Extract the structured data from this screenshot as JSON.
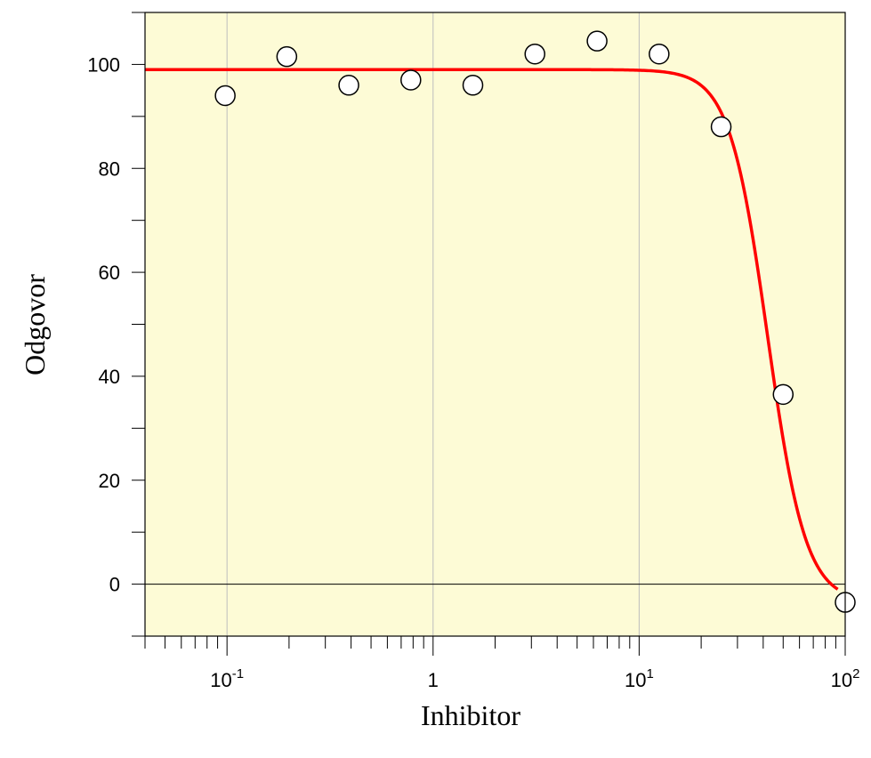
{
  "chart_data": {
    "type": "scatter",
    "xlabel": "Inhibitor",
    "ylabel": "Odgovor",
    "x_scale": "log",
    "xlim": [
      0.04,
      100
    ],
    "ylim": [
      -10,
      110
    ],
    "grid": "vertical at decades",
    "background_color": "#fdfbd6",
    "curve_color": "#ff0000",
    "marker_fill": "#ffffff",
    "y_ticks": [
      {
        "value": 0,
        "label": "0"
      },
      {
        "value": 20,
        "label": "20"
      },
      {
        "value": 40,
        "label": "40"
      },
      {
        "value": 60,
        "label": "60"
      },
      {
        "value": 80,
        "label": "80"
      },
      {
        "value": 100,
        "label": "100"
      }
    ],
    "x_ticks": [
      {
        "value": 0.1,
        "base": "10",
        "exp": "-1"
      },
      {
        "value": 1,
        "base": "1",
        "exp": ""
      },
      {
        "value": 10,
        "base": "10",
        "exp": "1"
      },
      {
        "value": 100,
        "base": "10",
        "exp": "2"
      }
    ],
    "points": [
      {
        "x": 0.098,
        "y": 94
      },
      {
        "x": 0.195,
        "y": 101.5
      },
      {
        "x": 0.39,
        "y": 96
      },
      {
        "x": 0.78,
        "y": 97
      },
      {
        "x": 1.56,
        "y": 96
      },
      {
        "x": 3.12,
        "y": 102
      },
      {
        "x": 6.25,
        "y": 104.5
      },
      {
        "x": 12.5,
        "y": 102
      },
      {
        "x": 25,
        "y": 88
      },
      {
        "x": 50,
        "y": 36.5
      },
      {
        "x": 100,
        "y": -3.5
      }
    ],
    "fit_curve": {
      "model": "four-parameter logistic",
      "top": 99,
      "bottom": -3.5,
      "ic50": 42,
      "hill": 4.7
    }
  }
}
